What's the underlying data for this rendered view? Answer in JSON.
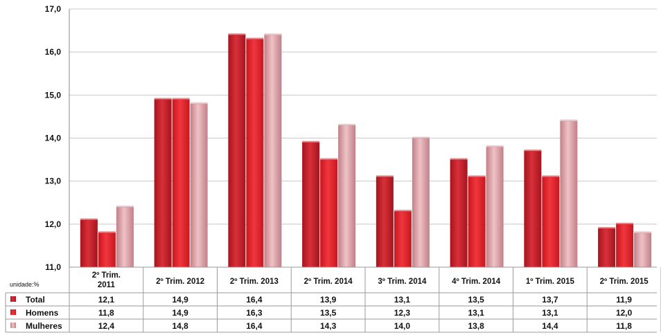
{
  "chart_data": {
    "type": "bar",
    "title": "",
    "xlabel": "",
    "ylabel": "",
    "unit_label": "unidade:%",
    "ylim": [
      11.0,
      17.0
    ],
    "yticks": [
      "11,0",
      "12,0",
      "13,0",
      "14,0",
      "15,0",
      "16,0",
      "17,0"
    ],
    "grid": true,
    "legend": "table-left",
    "categories": [
      [
        "2º Trim.",
        "2011"
      ],
      [
        "2º Trim. 2012"
      ],
      [
        "2º Trim. 2013"
      ],
      [
        "2º Trim. 2014"
      ],
      [
        "3º Trim. 2014"
      ],
      [
        "4º Trim. 2014"
      ],
      [
        "1º Trim. 2015"
      ],
      [
        "2º Trim. 2015"
      ]
    ],
    "series": [
      {
        "name": "Total",
        "color": "#c8202a",
        "values": [
          12.1,
          14.9,
          16.4,
          13.9,
          13.1,
          13.5,
          13.7,
          11.9
        ],
        "labels": [
          "12,1",
          "14,9",
          "16,4",
          "13,9",
          "13,1",
          "13,5",
          "13,7",
          "11,9"
        ]
      },
      {
        "name": "Homens",
        "color": "#e0242c",
        "values": [
          11.8,
          14.9,
          16.3,
          13.5,
          12.3,
          13.1,
          13.1,
          12.0
        ],
        "labels": [
          "11,8",
          "14,9",
          "16,3",
          "13,5",
          "12,3",
          "13,1",
          "13,1",
          "12,0"
        ]
      },
      {
        "name": "Mulheres",
        "color": "#d9a0a6",
        "values": [
          12.4,
          14.8,
          16.4,
          14.3,
          14.0,
          13.8,
          14.4,
          11.8
        ],
        "labels": [
          "12,4",
          "14,8",
          "16,4",
          "14,3",
          "14,0",
          "13,8",
          "14,4",
          "11,8"
        ]
      }
    ]
  }
}
